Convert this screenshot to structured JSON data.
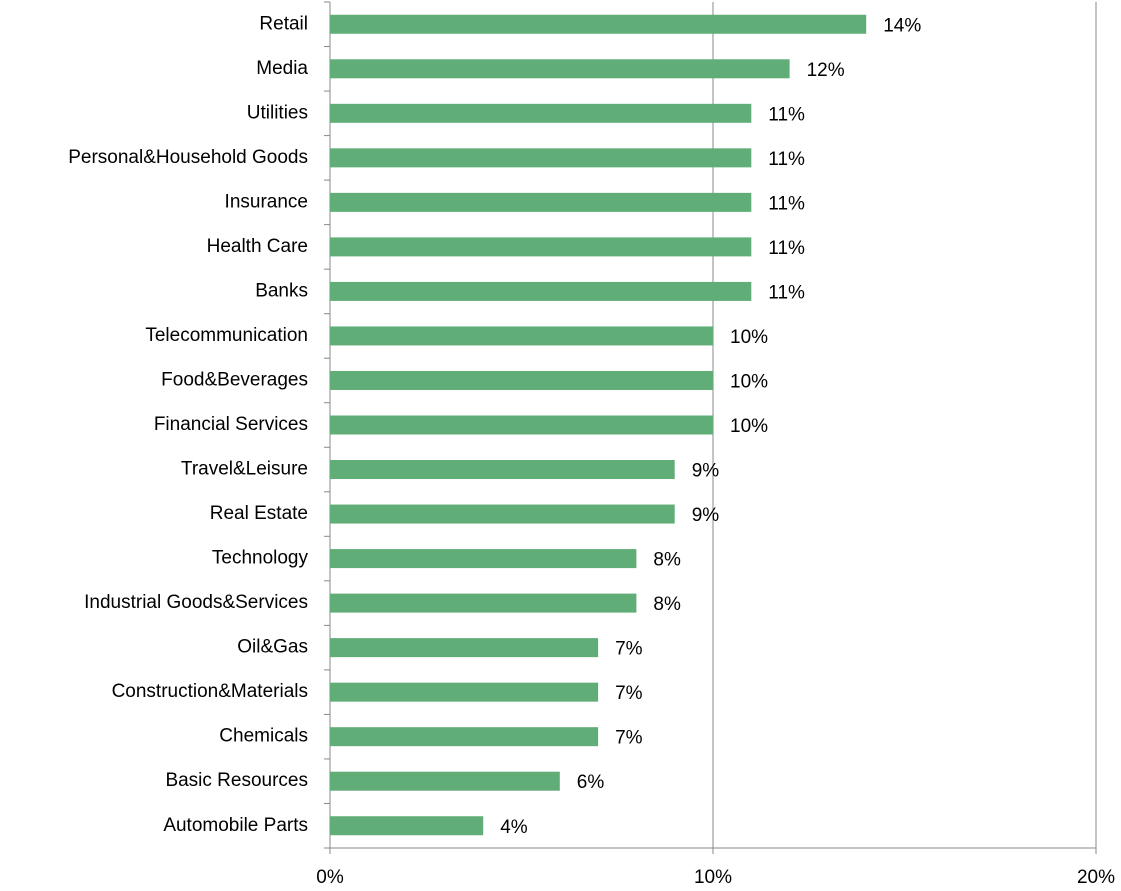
{
  "chart_data": {
    "type": "bar",
    "orientation": "horizontal",
    "categories": [
      "Retail",
      "Media",
      "Utilities",
      "Personal&Household Goods",
      "Insurance",
      "Health Care",
      "Banks",
      "Telecommunication",
      "Food&Beverages",
      "Financial Services",
      "Travel&Leisure",
      "Real Estate",
      "Technology",
      "Industrial Goods&Services",
      "Oil&Gas",
      "Construction&Materials",
      "Chemicals",
      "Basic Resources",
      "Automobile Parts"
    ],
    "values": [
      14,
      12,
      11,
      11,
      11,
      11,
      11,
      10,
      10,
      10,
      9,
      9,
      8,
      8,
      7,
      7,
      7,
      6,
      4
    ],
    "value_labels": [
      "14%",
      "12%",
      "11%",
      "11%",
      "11%",
      "11%",
      "11%",
      "10%",
      "10%",
      "10%",
      "9%",
      "9%",
      "8%",
      "8%",
      "7%",
      "7%",
      "7%",
      "6%",
      "4%"
    ],
    "color": "#60ad77",
    "xlim": [
      0,
      20
    ],
    "xticks": [
      {
        "value": 0,
        "label": "0%"
      },
      {
        "value": 10,
        "label": "10%"
      },
      {
        "value": 20,
        "label": "20%"
      }
    ],
    "grid": true
  }
}
